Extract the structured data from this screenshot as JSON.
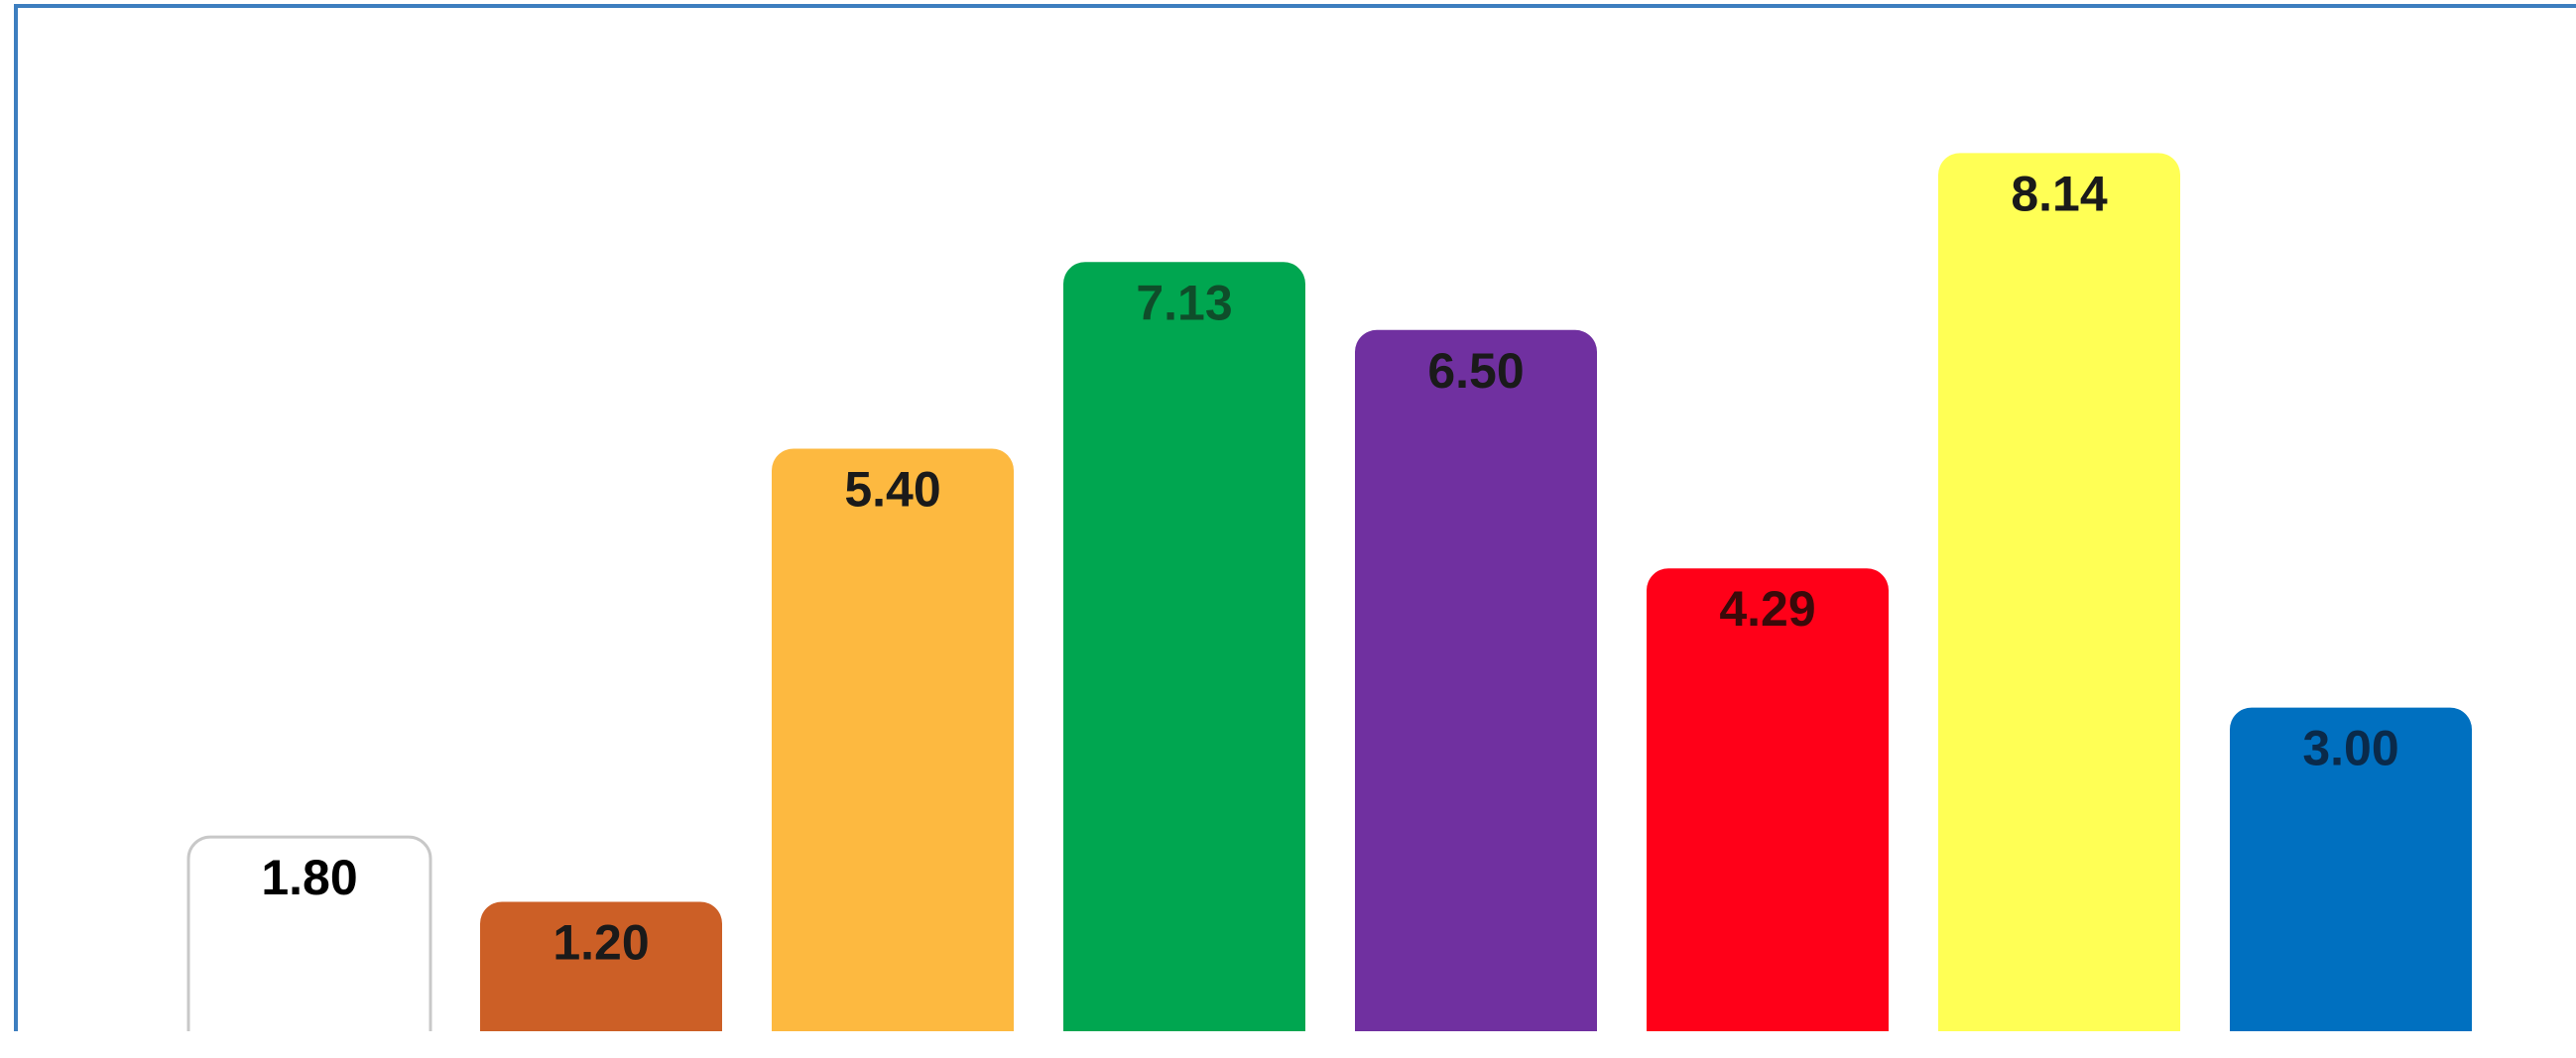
{
  "chart_data": {
    "type": "bar",
    "title": "",
    "xlabel": "",
    "ylabel": "",
    "ylim": [
      0,
      8.8
    ],
    "grid": false,
    "legend": "none",
    "categories": [
      "",
      "",
      "",
      "",
      "",
      "",
      "",
      ""
    ],
    "values": [
      1.8,
      1.2,
      5.4,
      7.13,
      6.5,
      4.29,
      8.14,
      3.0
    ],
    "value_labels": [
      "1.80",
      "1.20",
      "5.40",
      "7.13",
      "6.50",
      "4.29",
      "8.14",
      "3.00"
    ],
    "colors": [
      "#ffffff",
      "#cc5f26",
      "#fdb940",
      "#00a650",
      "#7030a0",
      "#ff0018",
      "#ffff55",
      "#0070c0"
    ],
    "label_colors": [
      "#000000",
      "#1a1a1a",
      "#1a1a1a",
      "#0f4d2a",
      "#1a1a1a",
      "#3a0a0a",
      "#1a1a1a",
      "#0a2a4a"
    ],
    "outline_colors": [
      "#c8c8c8",
      "none",
      "none",
      "none",
      "none",
      "none",
      "none",
      "none"
    ]
  }
}
